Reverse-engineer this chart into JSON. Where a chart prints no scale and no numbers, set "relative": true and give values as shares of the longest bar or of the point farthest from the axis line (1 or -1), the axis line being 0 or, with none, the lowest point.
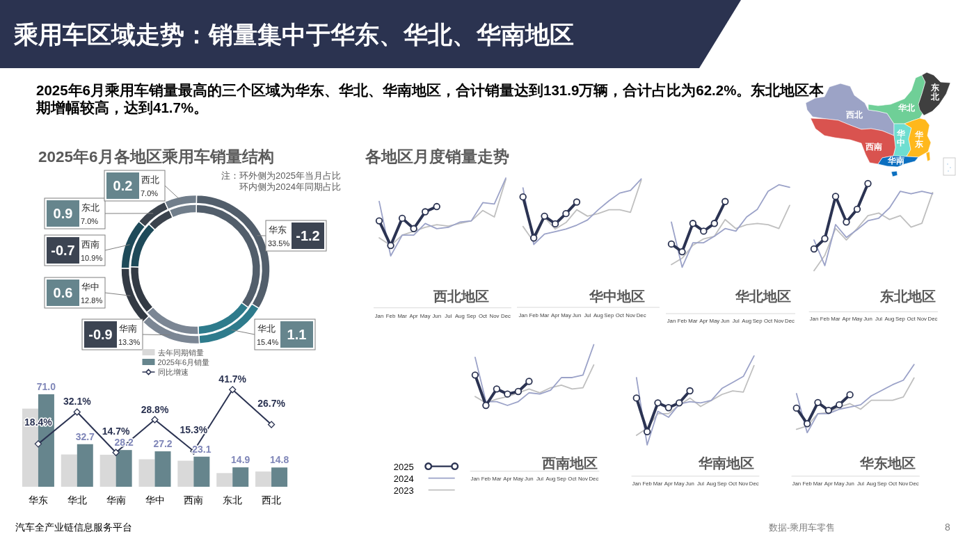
{
  "chart_data": [
    {
      "type": "other",
      "title": "乘用车区域走势：销量集中于华东、华北、华南地区",
      "subtitle": "2025年6月乘用车销量最高的三个区域为华东、华北、华南地区，合计销量达到131.9万辆，合计占比为62.2%。东北地区本期增幅较高，达到41.7%。",
      "annotations": [
        "各地区月度销量走势",
        "汽车全产业链信息服务平台",
        "数据-乘用车零售",
        "8"
      ]
    },
    {
      "type": "other",
      "categories": [
        "西北",
        "华北",
        "东北",
        "华中",
        "华东",
        "西南",
        "华南"
      ],
      "colors": [
        "#9ca3c6",
        "#6fcf97",
        "#3f3f3f",
        "#6fded0",
        "#ffb81c",
        "#d9534f",
        "#0b6fc0"
      ]
    },
    {
      "type": "donut",
      "title": "2025年6月各地区乘用车销量结构",
      "categories": [
        "华东",
        "华北",
        "华南",
        "华中",
        "西南",
        "东北",
        "西北"
      ],
      "series": [
        {
          "values": [
            34.7,
            14.3,
            14.2,
            12.2,
            11.6,
            6.1,
            6.8
          ],
          "colors": [
            "#525e6b",
            "#2e7b8c",
            "#7b8694",
            "#333a44",
            "#1e4a59",
            "#3b434d",
            "#717e8b"
          ]
        },
        {
          "values": [
            33.5,
            15.4,
            13.3,
            12.8,
            10.9,
            7.0,
            7.0
          ],
          "colors": [
            "#525e6b",
            "#2e7b8c",
            "#7b8694",
            "#333a44",
            "#1e4a59",
            "#3b434d",
            "#717e8b"
          ],
          "value_labels": [
            "33.5%",
            "15.4%",
            "13.3%",
            "12.8%",
            "10.9%",
            "7.0%",
            "7.0%"
          ]
        }
      ],
      "annotations": [
        "注：环外侧为2025年当月占比",
        "环内侧为2024年同期占比",
        {
          "text": "-1.2",
          "x": "华东"
        },
        {
          "text": "1.1",
          "x": "华北"
        },
        {
          "text": "-0.9",
          "x": "华南"
        },
        {
          "text": "0.6",
          "x": "华中"
        },
        {
          "text": "-0.7",
          "x": "西南"
        },
        {
          "text": "0.9",
          "x": "东北"
        },
        {
          "text": "0.2",
          "x": "西北"
        }
      ]
    },
    {
      "type": "bar",
      "categories": [
        "华东",
        "华北",
        "华南",
        "华中",
        "西南",
        "东北",
        "西北"
      ],
      "series": [
        {
          "name": "去年同期销量",
          "color": "#d9d9d9",
          "values": [
            60.0,
            24.8,
            24.6,
            21.1,
            20.0,
            10.5,
            11.7
          ]
        },
        {
          "name": "2025年6月销量",
          "color": "#66858d",
          "values": [
            71.0,
            32.7,
            28.2,
            27.2,
            23.1,
            14.9,
            14.8
          ],
          "value_labels": [
            "71.0",
            "32.7",
            "28.2",
            "27.2",
            "23.1",
            "14.9",
            "14.8"
          ]
        },
        {
          "name": "同比增速",
          "type": "line",
          "axis": "y2",
          "color": "#2b3352",
          "marker": "diamond",
          "values": [
            18.4,
            32.1,
            14.7,
            28.8,
            15.3,
            41.7,
            26.7
          ],
          "value_labels": [
            "18.4%",
            "32.1%",
            "14.7%",
            "28.8%",
            "15.3%",
            "41.7%",
            "26.7%"
          ]
        }
      ],
      "tick_labels": "x",
      "legend": "top"
    },
    {
      "type": "line",
      "title": "西北地区",
      "categories": [
        "Jan",
        "Feb",
        "Mar",
        "Apr",
        "May",
        "Jun",
        "Jul",
        "Aug",
        "Sep",
        "Oct",
        "Nov",
        "Dec"
      ],
      "relative": true,
      "series": [
        {
          "color": "#2b3352",
          "marker": "circle",
          "values": [
            0.67,
            0.48,
            0.69,
            0.61,
            0.74,
            0.78,
            null,
            null,
            null,
            null,
            null,
            null
          ]
        },
        {
          "color": "#9ba2c8",
          "values": [
            0.82,
            0.4,
            0.56,
            0.56,
            0.65,
            0.61,
            0.62,
            0.66,
            0.67,
            0.81,
            0.8,
            1.0
          ]
        },
        {
          "color": "#bfbfbf",
          "values": [
            0.54,
            0.48,
            0.56,
            0.59,
            0.62,
            0.64,
            0.63,
            0.65,
            0.67,
            0.75,
            0.7,
            0.99
          ]
        }
      ]
    },
    {
      "type": "line",
      "title": "华中地区",
      "categories": [
        "Jan",
        "Feb",
        "Mar",
        "Apr",
        "May",
        "Jun",
        "Jul",
        "Aug",
        "Sep",
        "Oct",
        "Nov",
        "Dec"
      ],
      "relative": true,
      "series": [
        {
          "color": "#2b3352",
          "marker": "circle",
          "values": [
            0.86,
            0.54,
            0.71,
            0.65,
            0.73,
            0.82,
            null,
            null,
            null,
            null,
            null,
            null
          ]
        },
        {
          "color": "#9ba2c8",
          "values": [
            0.93,
            0.49,
            0.57,
            0.59,
            0.61,
            0.64,
            0.68,
            0.76,
            0.83,
            0.89,
            0.91,
            1.0
          ]
        },
        {
          "color": "#bfbfbf",
          "values": [
            0.63,
            0.51,
            0.7,
            0.61,
            0.66,
            0.76,
            0.71,
            0.73,
            0.76,
            0.76,
            0.74,
            0.99
          ]
        }
      ]
    },
    {
      "type": "line",
      "title": "华北地区",
      "categories": [
        "Jan",
        "Feb",
        "Mar",
        "Apr",
        "May",
        "Jun",
        "Jul",
        "Aug",
        "Sep",
        "Oct",
        "Nov",
        "Dec"
      ],
      "relative": true,
      "series": [
        {
          "color": "#2b3352",
          "marker": "circle",
          "values": [
            0.54,
            0.48,
            0.7,
            0.64,
            0.7,
            0.87,
            null,
            null,
            null,
            null,
            null,
            null
          ]
        },
        {
          "color": "#9ba2c8",
          "values": [
            0.71,
            0.36,
            0.55,
            0.55,
            0.6,
            0.66,
            0.64,
            0.75,
            0.81,
            0.95,
            1.0,
            0.98
          ]
        },
        {
          "color": "#bfbfbf",
          "values": [
            0.38,
            0.43,
            0.53,
            0.58,
            0.6,
            0.73,
            0.66,
            0.69,
            0.7,
            0.69,
            0.66,
            0.84
          ]
        }
      ]
    },
    {
      "type": "line",
      "title": "东北地区",
      "categories": [
        "Jan",
        "Feb",
        "Mar",
        "Apr",
        "May",
        "Jun",
        "Jul",
        "Aug",
        "Sep",
        "Oct",
        "Nov",
        "Dec"
      ],
      "relative": true,
      "series": [
        {
          "color": "#2b3352",
          "marker": "circle",
          "values": [
            0.49,
            0.57,
            0.9,
            0.7,
            0.8,
            1.0,
            null,
            null,
            null,
            null,
            null,
            null
          ]
        },
        {
          "color": "#9ba2c8",
          "values": [
            0.56,
            0.36,
            0.68,
            0.58,
            0.64,
            0.71,
            0.73,
            0.81,
            0.94,
            0.92,
            0.94,
            0.92
          ]
        },
        {
          "color": "#bfbfbf",
          "values": [
            0.32,
            0.44,
            0.65,
            0.56,
            0.65,
            0.75,
            0.77,
            0.72,
            0.75,
            0.66,
            0.69,
            0.93
          ]
        }
      ]
    },
    {
      "type": "line",
      "title": "西南地区",
      "categories": [
        "Jan",
        "Feb",
        "Mar",
        "Apr",
        "May",
        "Jun",
        "Jul",
        "Aug",
        "Sep",
        "Oct",
        "Nov",
        "Dec"
      ],
      "relative": true,
      "legend": "bottom left",
      "series": [
        {
          "name": "2025",
          "color": "#2b3352",
          "marker": "circle",
          "values": [
            0.76,
            0.52,
            0.65,
            0.61,
            0.63,
            0.71,
            null,
            null,
            null,
            null,
            null,
            null
          ]
        },
        {
          "name": "2024",
          "color": "#9ba2c8",
          "values": [
            0.9,
            0.55,
            0.55,
            0.52,
            0.55,
            0.62,
            0.61,
            0.64,
            0.74,
            0.74,
            0.76,
            1.0
          ]
        },
        {
          "name": "2023",
          "color": "#bfbfbf",
          "values": [
            0.59,
            0.54,
            0.57,
            0.59,
            0.62,
            0.65,
            0.62,
            0.66,
            0.68,
            0.65,
            0.66,
            0.84
          ]
        }
      ]
    },
    {
      "type": "line",
      "title": "华南地区",
      "categories": [
        "Jan",
        "Feb",
        "Mar",
        "Apr",
        "May",
        "Jun",
        "Jul",
        "Aug",
        "Sep",
        "Oct",
        "Nov",
        "Dec"
      ],
      "relative": true,
      "series": [
        {
          "color": "#2b3352",
          "marker": "circle",
          "values": [
            0.65,
            0.37,
            0.61,
            0.57,
            0.61,
            0.71,
            null,
            null,
            null,
            null,
            null,
            null
          ]
        },
        {
          "color": "#9ba2c8",
          "values": [
            0.82,
            0.26,
            0.54,
            0.49,
            0.6,
            0.62,
            0.61,
            0.63,
            0.73,
            0.78,
            0.83,
            1.0
          ]
        },
        {
          "color": "#bfbfbf",
          "values": [
            0.34,
            0.4,
            0.52,
            0.52,
            0.59,
            0.65,
            0.58,
            0.63,
            0.68,
            0.71,
            0.7,
            0.92
          ]
        }
      ]
    },
    {
      "type": "line",
      "title": "华东地区",
      "categories": [
        "Jan",
        "Feb",
        "Mar",
        "Apr",
        "May",
        "Jun",
        "Jul",
        "Aug",
        "Sep",
        "Oct",
        "Nov",
        "Dec"
      ],
      "relative": true,
      "series": [
        {
          "color": "#2b3352",
          "marker": "circle",
          "values": [
            0.61,
            0.47,
            0.66,
            0.59,
            0.64,
            0.73,
            null,
            null,
            null,
            null,
            null,
            null
          ]
        },
        {
          "color": "#9ba2c8",
          "values": [
            0.74,
            0.39,
            0.56,
            0.56,
            0.6,
            0.62,
            0.64,
            0.72,
            0.77,
            0.82,
            0.86,
            1.0
          ]
        },
        {
          "color": "#bfbfbf",
          "values": [
            0.42,
            0.45,
            0.56,
            0.57,
            0.62,
            0.65,
            0.6,
            0.68,
            0.68,
            0.68,
            0.71,
            0.88
          ]
        }
      ]
    }
  ]
}
